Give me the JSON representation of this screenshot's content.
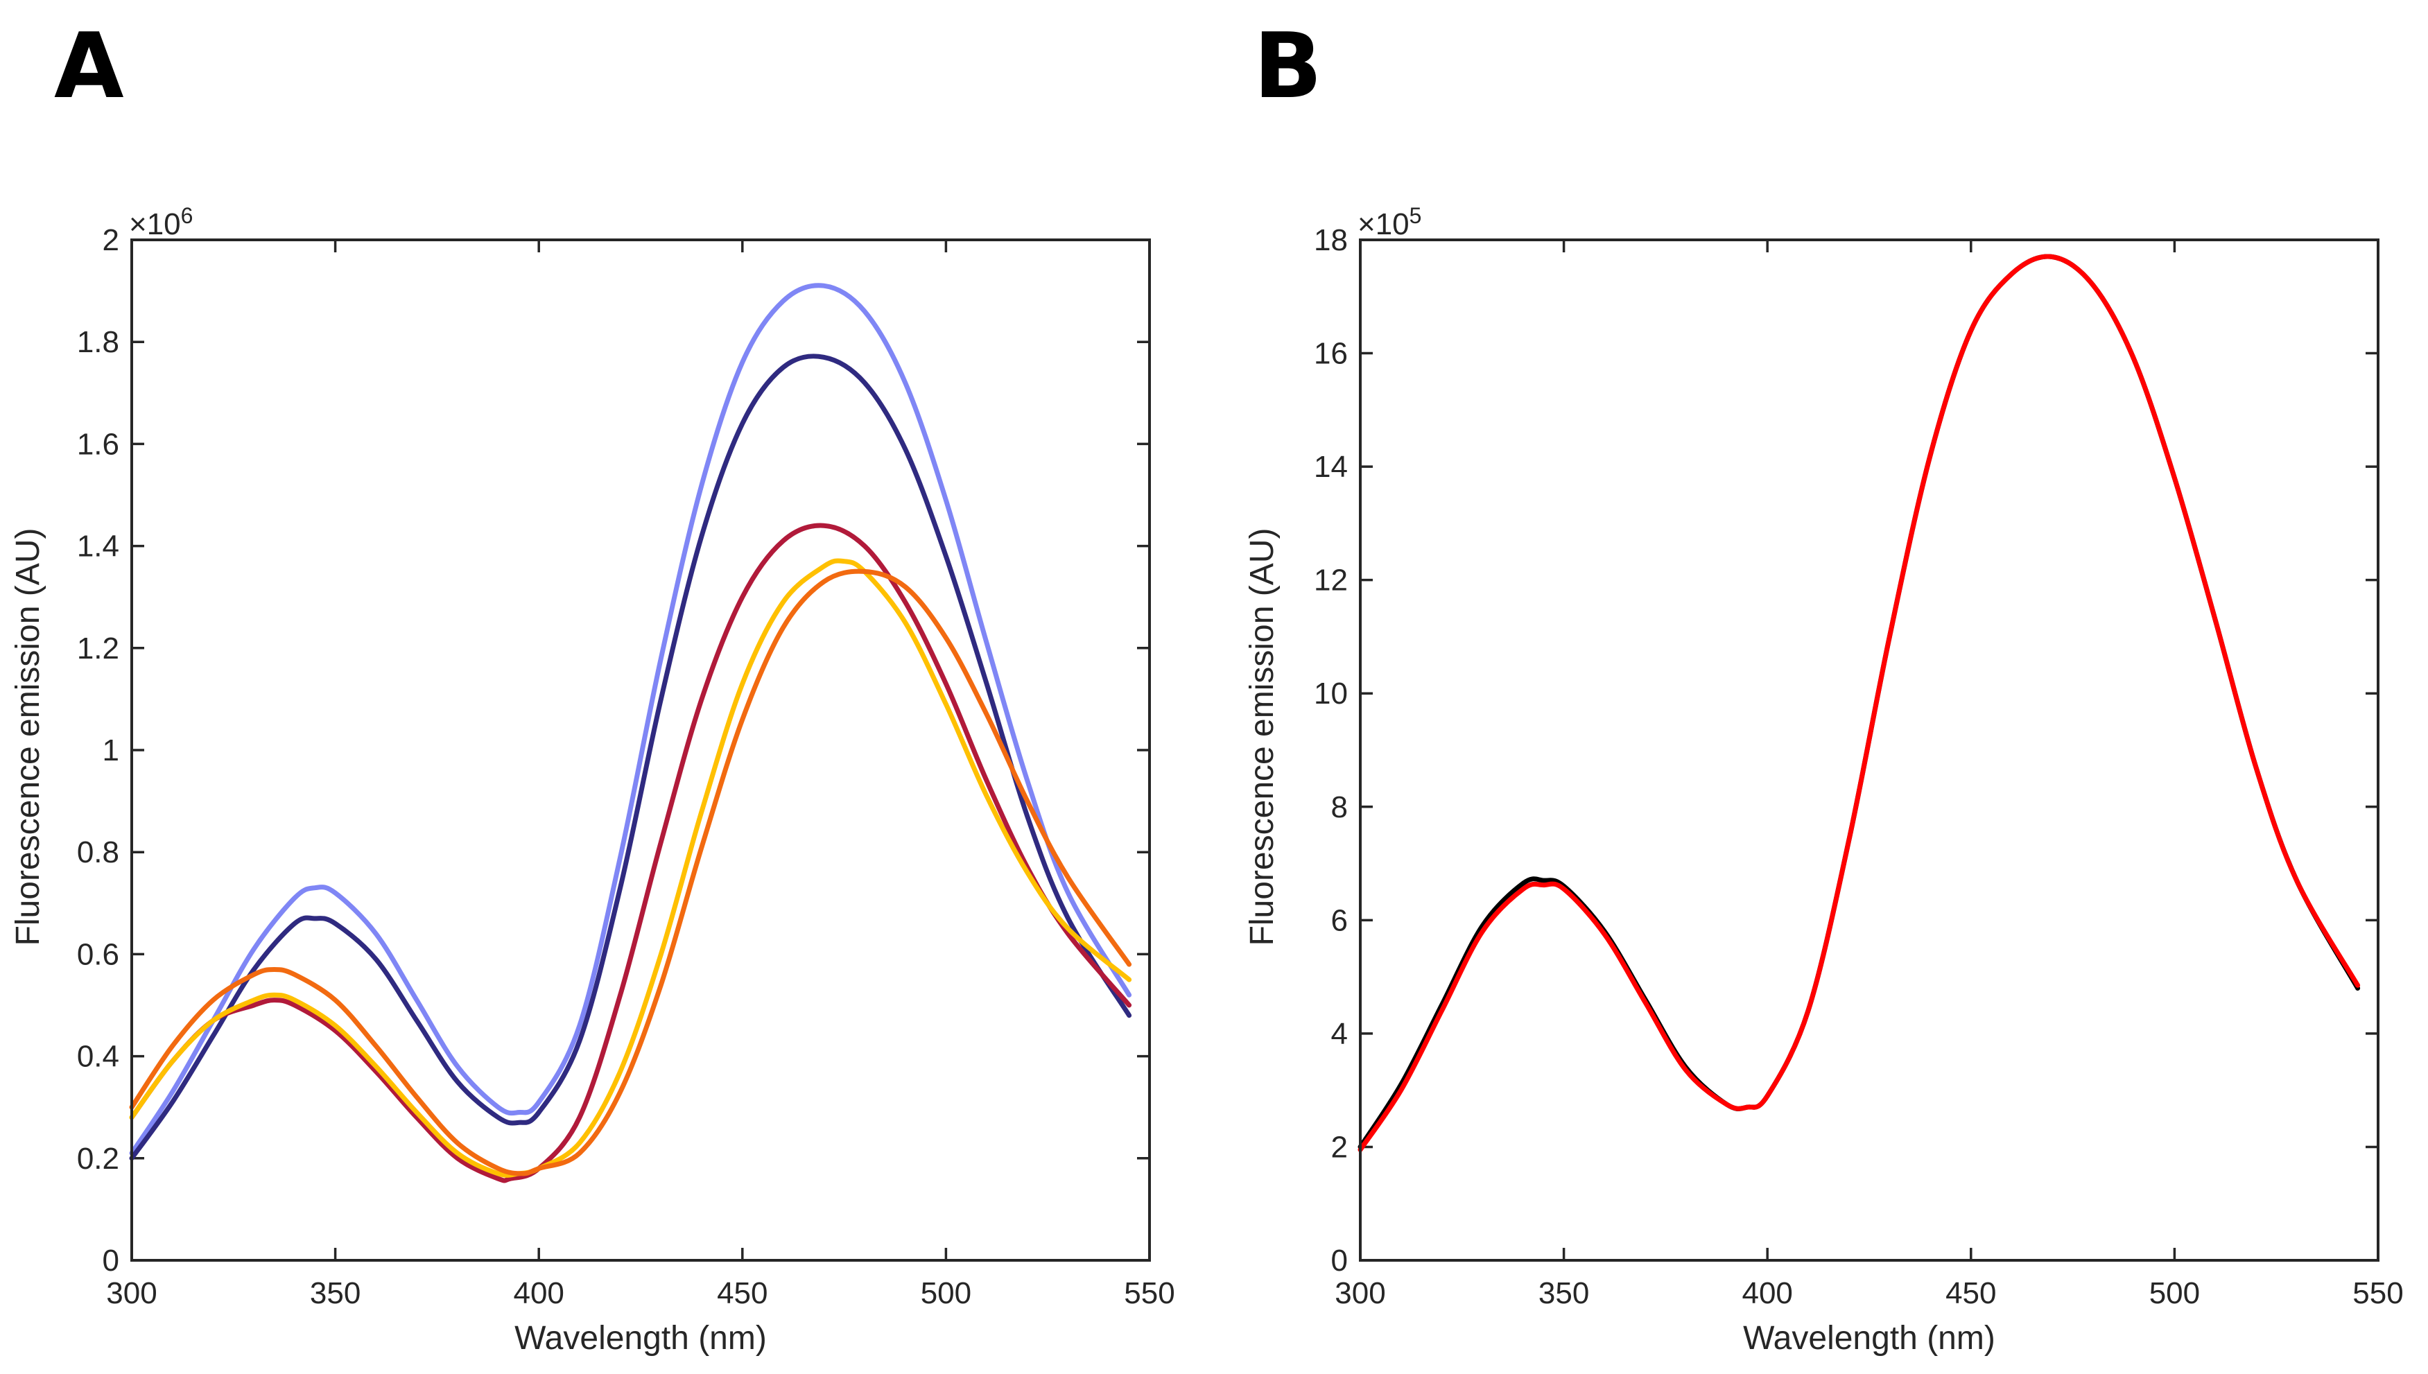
{
  "chart_data": [
    {
      "panel_label": "A",
      "type": "line",
      "xlabel": "Wavelength (nm)",
      "ylabel": "Fluorescence emission (AU)",
      "y_exponent_label": "×10",
      "y_exponent": "6",
      "xlim": [
        300,
        550
      ],
      "ylim": [
        0,
        2
      ],
      "x_ticks": [
        300,
        350,
        400,
        450,
        500,
        550
      ],
      "x_tick_labels": [
        "300",
        "350",
        "400",
        "450",
        "500",
        "550"
      ],
      "y_ticks": [
        0,
        0.2,
        0.4,
        0.6,
        0.8,
        1,
        1.2,
        1.4,
        1.6,
        1.8,
        2
      ],
      "y_tick_labels": [
        "0",
        "0.2",
        "0.4",
        "0.6",
        "0.8",
        "1",
        "1.2",
        "1.4",
        "1.6",
        "1.8",
        "2"
      ],
      "grid": false,
      "legend": "none",
      "series": [
        {
          "color": "#7f86f5",
          "x": [
            300,
            310,
            320,
            330,
            340,
            345,
            350,
            360,
            370,
            380,
            390,
            395,
            400,
            410,
            420,
            430,
            440,
            450,
            460,
            470,
            480,
            490,
            500,
            510,
            520,
            530,
            545
          ],
          "y": [
            0.21,
            0.33,
            0.47,
            0.61,
            0.71,
            0.73,
            0.72,
            0.64,
            0.51,
            0.38,
            0.3,
            0.29,
            0.31,
            0.46,
            0.79,
            1.18,
            1.52,
            1.76,
            1.88,
            1.91,
            1.86,
            1.72,
            1.49,
            1.21,
            0.94,
            0.72,
            0.52
          ]
        },
        {
          "color": "#2f2a80",
          "x": [
            300,
            310,
            320,
            330,
            340,
            345,
            350,
            360,
            370,
            380,
            390,
            395,
            400,
            410,
            420,
            430,
            440,
            450,
            460,
            470,
            480,
            490,
            500,
            510,
            520,
            530,
            545
          ],
          "y": [
            0.2,
            0.31,
            0.44,
            0.57,
            0.66,
            0.67,
            0.66,
            0.59,
            0.47,
            0.35,
            0.28,
            0.27,
            0.29,
            0.43,
            0.73,
            1.1,
            1.42,
            1.64,
            1.75,
            1.77,
            1.72,
            1.59,
            1.38,
            1.13,
            0.87,
            0.67,
            0.48
          ]
        },
        {
          "color": "#b11a3a",
          "x": [
            300,
            310,
            320,
            330,
            335,
            340,
            350,
            360,
            370,
            380,
            390,
            393,
            400,
            410,
            420,
            430,
            440,
            450,
            460,
            470,
            480,
            490,
            500,
            510,
            520,
            530,
            545
          ],
          "y": [
            0.28,
            0.39,
            0.47,
            0.5,
            0.51,
            0.5,
            0.45,
            0.37,
            0.28,
            0.2,
            0.16,
            0.16,
            0.18,
            0.28,
            0.52,
            0.82,
            1.1,
            1.3,
            1.41,
            1.44,
            1.4,
            1.29,
            1.13,
            0.94,
            0.77,
            0.64,
            0.5
          ]
        },
        {
          "color": "#ffc000",
          "x": [
            300,
            310,
            320,
            330,
            335,
            340,
            350,
            360,
            370,
            380,
            390,
            395,
            400,
            410,
            420,
            430,
            440,
            450,
            460,
            470,
            475,
            480,
            490,
            500,
            510,
            520,
            530,
            545
          ],
          "y": [
            0.28,
            0.39,
            0.47,
            0.51,
            0.52,
            0.51,
            0.46,
            0.38,
            0.29,
            0.21,
            0.17,
            0.17,
            0.18,
            0.23,
            0.37,
            0.6,
            0.88,
            1.13,
            1.29,
            1.36,
            1.37,
            1.35,
            1.25,
            1.09,
            0.91,
            0.76,
            0.65,
            0.55
          ]
        },
        {
          "color": "#f26a10",
          "x": [
            300,
            310,
            320,
            330,
            335,
            340,
            350,
            360,
            370,
            380,
            390,
            396,
            400,
            410,
            420,
            430,
            440,
            450,
            460,
            470,
            480,
            490,
            500,
            510,
            520,
            530,
            545
          ],
          "y": [
            0.3,
            0.42,
            0.51,
            0.56,
            0.57,
            0.56,
            0.51,
            0.42,
            0.32,
            0.23,
            0.18,
            0.17,
            0.18,
            0.21,
            0.33,
            0.54,
            0.81,
            1.06,
            1.24,
            1.33,
            1.35,
            1.32,
            1.22,
            1.07,
            0.9,
            0.75,
            0.58
          ]
        }
      ]
    },
    {
      "panel_label": "B",
      "type": "line",
      "xlabel": "Wavelength (nm)",
      "ylabel": "Fluorescence emission (AU)",
      "y_exponent_label": "×10",
      "y_exponent": "5",
      "xlim": [
        300,
        550
      ],
      "ylim": [
        0,
        18
      ],
      "x_ticks": [
        300,
        350,
        400,
        450,
        500,
        550
      ],
      "x_tick_labels": [
        "300",
        "350",
        "400",
        "450",
        "500",
        "550"
      ],
      "y_ticks": [
        0,
        2,
        4,
        6,
        8,
        10,
        12,
        14,
        16,
        18
      ],
      "y_tick_labels": [
        "0",
        "2",
        "4",
        "6",
        "8",
        "10",
        "12",
        "14",
        "16",
        "18"
      ],
      "grid": false,
      "legend": "none",
      "series": [
        {
          "color": "#000000",
          "x": [
            300,
            310,
            320,
            330,
            340,
            345,
            350,
            360,
            370,
            380,
            390,
            395,
            400,
            410,
            420,
            430,
            440,
            450,
            460,
            470,
            480,
            490,
            500,
            510,
            520,
            530,
            545
          ],
          "y": [
            2.0,
            3.1,
            4.5,
            5.9,
            6.65,
            6.7,
            6.6,
            5.8,
            4.6,
            3.4,
            2.75,
            2.7,
            2.9,
            4.4,
            7.4,
            11.0,
            14.2,
            16.4,
            17.4,
            17.7,
            17.2,
            15.9,
            13.8,
            11.3,
            8.7,
            6.7,
            4.8
          ]
        },
        {
          "color": "#ff0000",
          "x": [
            300,
            310,
            320,
            330,
            340,
            345,
            350,
            360,
            370,
            380,
            390,
            395,
            400,
            410,
            420,
            430,
            440,
            450,
            460,
            470,
            480,
            490,
            500,
            510,
            520,
            530,
            545
          ],
          "y": [
            1.95,
            3.0,
            4.4,
            5.8,
            6.55,
            6.62,
            6.55,
            5.75,
            4.55,
            3.35,
            2.75,
            2.7,
            2.9,
            4.4,
            7.4,
            11.0,
            14.2,
            16.4,
            17.4,
            17.7,
            17.2,
            15.9,
            13.8,
            11.3,
            8.7,
            6.7,
            4.85
          ]
        }
      ]
    }
  ]
}
